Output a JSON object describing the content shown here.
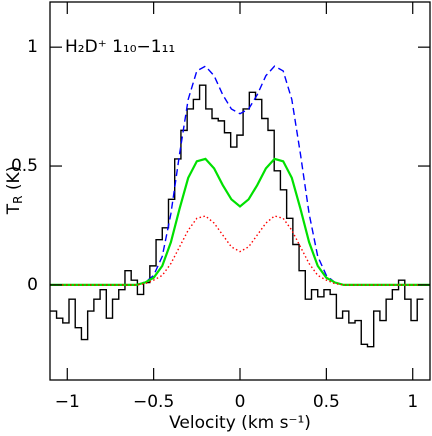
{
  "chart_data": {
    "type": "line",
    "annotation": "H₂D⁺ 1₁₀−1₁₁",
    "x_label": "Velocity (km s⁻¹)",
    "y_label": [
      "T",
      "R",
      " (K)"
    ],
    "xlim": [
      -1.1,
      1.1
    ],
    "ylim": [
      -0.4,
      1.19
    ],
    "xticks": [
      {
        "value": -1,
        "label": "−1"
      },
      {
        "value": -0.5,
        "label": "−0.5"
      },
      0,
      0.5,
      1
    ],
    "yticks": [
      0,
      0.5,
      1
    ],
    "series": [
      {
        "style": "step",
        "color": "#000000",
        "x": [
          -1.08,
          -1.044,
          -1.008,
          -0.972,
          -0.936,
          -0.9,
          -0.864,
          -0.828,
          -0.792,
          -0.756,
          -0.72,
          -0.684,
          -0.648,
          -0.612,
          -0.576,
          -0.54,
          -0.504,
          -0.468,
          -0.432,
          -0.396,
          -0.36,
          -0.324,
          -0.288,
          -0.252,
          -0.216,
          -0.18,
          -0.144,
          -0.108,
          -0.072,
          -0.036,
          0,
          0.036,
          0.072,
          0.108,
          0.144,
          0.18,
          0.216,
          0.252,
          0.288,
          0.324,
          0.36,
          0.396,
          0.432,
          0.468,
          0.504,
          0.54,
          0.576,
          0.612,
          0.648,
          0.684,
          0.72,
          0.756,
          0.792,
          0.828,
          0.864,
          0.9,
          0.936,
          0.972,
          1.008,
          1.044
        ],
        "values": [
          -0.11,
          -0.14,
          -0.16,
          -0.06,
          -0.18,
          -0.23,
          -0.11,
          -0.06,
          -0.02,
          -0.14,
          -0.06,
          -0.02,
          0.06,
          0.02,
          -0.04,
          0.01,
          0.08,
          0.19,
          0.24,
          0.36,
          0.53,
          0.65,
          0.74,
          0.78,
          0.84,
          0.74,
          0.7,
          0.69,
          0.64,
          0.58,
          0.63,
          0.74,
          0.81,
          0.78,
          0.7,
          0.65,
          0.48,
          0.4,
          0.28,
          0.17,
          0.06,
          -0.06,
          -0.02,
          -0.05,
          -0.02,
          -0.04,
          -0.14,
          -0.11,
          -0.16,
          -0.15,
          -0.25,
          -0.26,
          -0.11,
          -0.15,
          -0.06,
          -0.02,
          0.02,
          -0.06,
          -0.15,
          -0.06
        ]
      },
      {
        "style": "dashed",
        "color": "#0000ff",
        "x": [
          -1.1,
          -0.7,
          -0.6,
          -0.55,
          -0.5,
          -0.45,
          -0.4,
          -0.35,
          -0.3,
          -0.25,
          -0.2,
          -0.15,
          -0.1,
          -0.05,
          0,
          0.05,
          0.1,
          0.15,
          0.2,
          0.25,
          0.3,
          0.35,
          0.4,
          0.45,
          0.5,
          0.55,
          0.6,
          0.7,
          1.1
        ],
        "values": [
          0,
          0,
          0,
          0.01,
          0.04,
          0.12,
          0.3,
          0.55,
          0.78,
          0.9,
          0.92,
          0.88,
          0.8,
          0.74,
          0.72,
          0.74,
          0.8,
          0.88,
          0.92,
          0.9,
          0.78,
          0.55,
          0.3,
          0.12,
          0.04,
          0.01,
          0,
          0,
          0
        ]
      },
      {
        "style": "solid",
        "color": "#00e000",
        "x": [
          -1.1,
          -0.7,
          -0.6,
          -0.55,
          -0.5,
          -0.45,
          -0.4,
          -0.35,
          -0.3,
          -0.25,
          -0.2,
          -0.15,
          -0.1,
          -0.05,
          0,
          0.05,
          0.1,
          0.15,
          0.2,
          0.25,
          0.3,
          0.35,
          0.4,
          0.45,
          0.5,
          0.55,
          0.6,
          0.7,
          1.1
        ],
        "values": [
          0,
          0,
          0,
          0.01,
          0.03,
          0.08,
          0.18,
          0.32,
          0.45,
          0.52,
          0.53,
          0.49,
          0.42,
          0.36,
          0.33,
          0.36,
          0.42,
          0.49,
          0.53,
          0.52,
          0.45,
          0.32,
          0.18,
          0.08,
          0.03,
          0.01,
          0,
          0,
          0
        ]
      },
      {
        "style": "dotted",
        "color": "#ff0000",
        "x": [
          -1.1,
          -0.7,
          -0.6,
          -0.55,
          -0.5,
          -0.45,
          -0.4,
          -0.35,
          -0.3,
          -0.25,
          -0.2,
          -0.15,
          -0.1,
          -0.05,
          0,
          0.05,
          0.1,
          0.15,
          0.2,
          0.25,
          0.3,
          0.35,
          0.4,
          0.45,
          0.5,
          0.55,
          0.6,
          0.7,
          1.1
        ],
        "values": [
          0,
          0,
          0,
          0.005,
          0.02,
          0.04,
          0.09,
          0.16,
          0.23,
          0.28,
          0.29,
          0.26,
          0.21,
          0.16,
          0.14,
          0.16,
          0.21,
          0.26,
          0.29,
          0.28,
          0.23,
          0.16,
          0.09,
          0.04,
          0.02,
          0.005,
          0,
          0,
          0
        ]
      }
    ]
  }
}
